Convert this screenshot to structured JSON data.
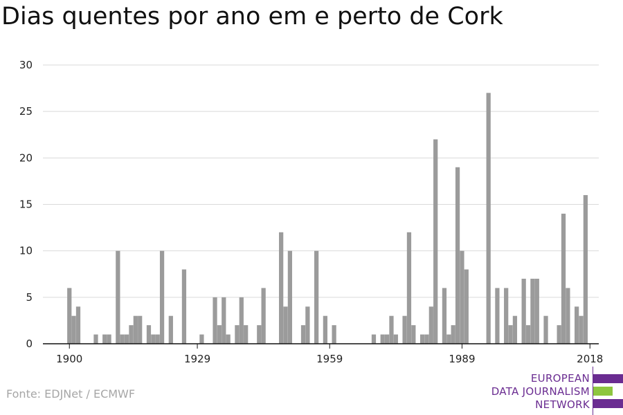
{
  "title": "Dias quentes por ano em e perto de Cork",
  "source": "Fonte: EDJNet / ECMWF",
  "logo": {
    "lines": [
      "EUROPEAN",
      "DATA JOURNALISM",
      "NETWORK"
    ],
    "purple": "#6a2c91",
    "green": "#8dc63f"
  },
  "chart_data": {
    "type": "bar",
    "title": "Dias quentes por ano em e perto de Cork",
    "xlabel": "",
    "ylabel": "",
    "x_start": 1894,
    "x_end": 2020,
    "ylim": [
      0,
      30
    ],
    "yticks": [
      0,
      5,
      10,
      15,
      20,
      25,
      30
    ],
    "xticks": [
      1900,
      1929,
      1959,
      1989,
      2018
    ],
    "grid": true,
    "bar_color": "#9b9b9b",
    "categories": [
      1900,
      1901,
      1902,
      1906,
      1908,
      1909,
      1911,
      1912,
      1913,
      1914,
      1915,
      1916,
      1918,
      1919,
      1920,
      1921,
      1923,
      1926,
      1930,
      1933,
      1934,
      1935,
      1936,
      1938,
      1939,
      1940,
      1943,
      1944,
      1948,
      1949,
      1950,
      1953,
      1954,
      1956,
      1958,
      1960,
      1969,
      1971,
      1972,
      1973,
      1974,
      1976,
      1977,
      1978,
      1980,
      1981,
      1982,
      1983,
      1985,
      1986,
      1987,
      1988,
      1989,
      1990,
      1995,
      1997,
      1999,
      2000,
      2001,
      2003,
      2004,
      2005,
      2006,
      2008,
      2011,
      2012,
      2013,
      2015,
      2016,
      2017
    ],
    "values": [
      6,
      3,
      4,
      1,
      1,
      1,
      10,
      1,
      1,
      2,
      3,
      3,
      2,
      1,
      1,
      10,
      3,
      8,
      1,
      5,
      2,
      5,
      1,
      2,
      5,
      2,
      2,
      6,
      12,
      4,
      10,
      2,
      4,
      10,
      3,
      2,
      1,
      1,
      1,
      3,
      1,
      3,
      12,
      2,
      1,
      1,
      4,
      22,
      6,
      1,
      2,
      19,
      10,
      8,
      27,
      6,
      6,
      2,
      3,
      7,
      2,
      7,
      7,
      3,
      2,
      14,
      6,
      4,
      3,
      16
    ]
  }
}
